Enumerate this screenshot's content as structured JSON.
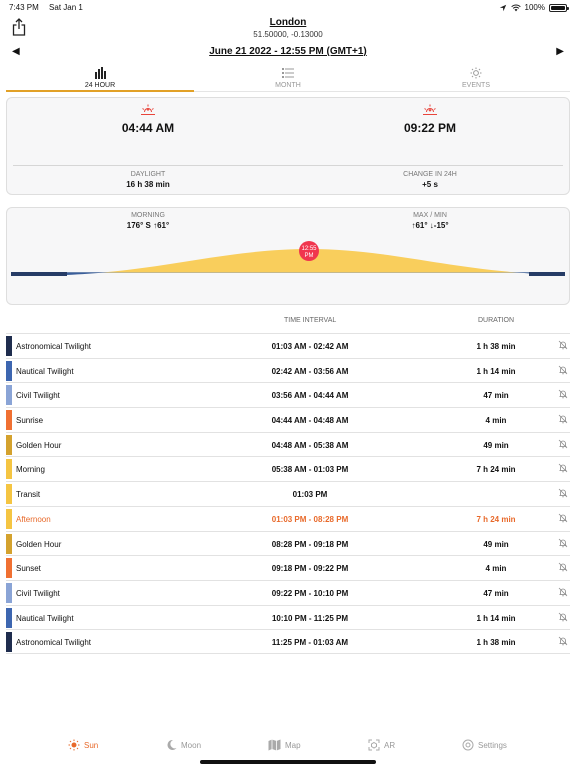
{
  "status": {
    "time": "7:43 PM",
    "date": "Sat Jan 1",
    "battery": "100%",
    "battery_level": 1.0
  },
  "location": {
    "name": "London",
    "coords": "51.50000, -0.13000"
  },
  "date_nav": {
    "prev": "◀",
    "next": "▶",
    "date": "June 21 2022 - 12:55 PM (GMT+1)"
  },
  "tabs": [
    {
      "label": "24 HOUR",
      "icon": "bar-chart-icon"
    },
    {
      "label": "MONTH",
      "icon": "list-icon"
    },
    {
      "label": "EVENTS",
      "icon": "sun-icon"
    }
  ],
  "sun_times": {
    "sunrise": "04:44 AM",
    "sunset": "09:22 PM"
  },
  "stats": {
    "daylight_label": "DAYLIGHT",
    "daylight": "16 h 38 min",
    "change_label": "CHANGE IN 24H",
    "change": "+5 s"
  },
  "position": {
    "morning_label": "MORNING",
    "morning": "176° S  ↑61°",
    "maxmin_label": "MAX / MIN",
    "maxmin": "↑61°  ↓-15°",
    "now_badge": [
      "12:55",
      "PM"
    ]
  },
  "table": {
    "col_interval": "TIME INTERVAL",
    "col_duration": "DURATION",
    "rows": [
      {
        "name": "Astronomical Twilight",
        "interval": "01:03 AM - 02:42 AM",
        "duration": "1 h  38 min",
        "color": "#1f2d4e"
      },
      {
        "name": "Nautical Twilight",
        "interval": "02:42 AM - 03:56 AM",
        "duration": "1 h  14 min",
        "color": "#3d66b0"
      },
      {
        "name": "Civil Twilight",
        "interval": "03:56 AM - 04:44 AM",
        "duration": "47 min",
        "color": "#8aa4d6"
      },
      {
        "name": "Sunrise",
        "interval": "04:44 AM - 04:48 AM",
        "duration": "4 min",
        "color": "#f07032"
      },
      {
        "name": "Golden Hour",
        "interval": "04:48 AM - 05:38 AM",
        "duration": "49 min",
        "color": "#d4a22e"
      },
      {
        "name": "Morning",
        "interval": "05:38 AM - 01:03 PM",
        "duration": "7 h  24 min",
        "color": "#f5c542"
      },
      {
        "name": "Transit",
        "interval": "01:03 PM",
        "duration": "",
        "color": "#f5c542"
      },
      {
        "name": "Afternoon",
        "interval": "01:03 PM - 08:28 PM",
        "duration": "7 h  24 min",
        "color": "#f5c542",
        "highlight": true
      },
      {
        "name": "Golden Hour",
        "interval": "08:28 PM - 09:18 PM",
        "duration": "49 min",
        "color": "#d4a22e"
      },
      {
        "name": "Sunset",
        "interval": "09:18 PM - 09:22 PM",
        "duration": "4 min",
        "color": "#f07032"
      },
      {
        "name": "Civil Twilight",
        "interval": "09:22 PM - 10:10 PM",
        "duration": "47 min",
        "color": "#8aa4d6"
      },
      {
        "name": "Nautical Twilight",
        "interval": "10:10 PM - 11:25 PM",
        "duration": "1 h  14 min",
        "color": "#3d66b0"
      },
      {
        "name": "Astronomical Twilight",
        "interval": "11:25 PM - 01:03 AM",
        "duration": "1 h  38 min",
        "color": "#1f2d4e"
      }
    ]
  },
  "tabbar": [
    {
      "label": "Sun",
      "icon": "sun-icon",
      "active": true
    },
    {
      "label": "Moon",
      "icon": "moon-icon"
    },
    {
      "label": "Map",
      "icon": "map-icon"
    },
    {
      "label": "AR",
      "icon": "ar-icon"
    },
    {
      "label": "Settings",
      "icon": "settings-icon"
    }
  ]
}
